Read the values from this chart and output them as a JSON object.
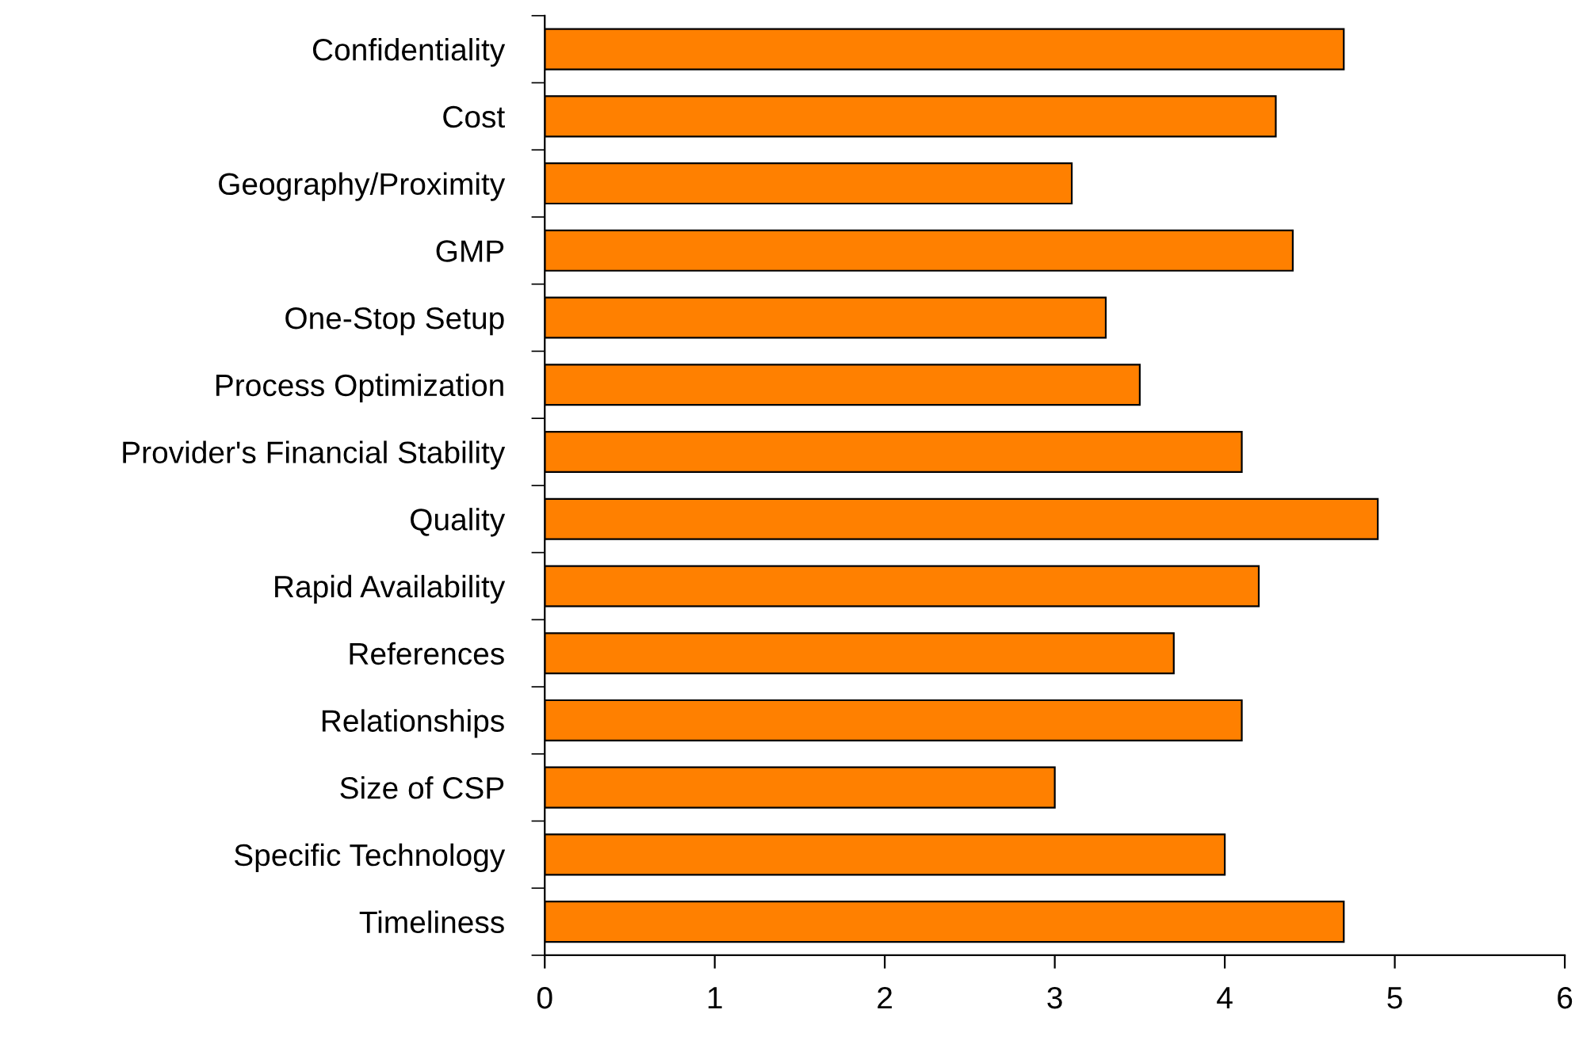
{
  "chart_data": {
    "type": "bar",
    "orientation": "horizontal",
    "categories": [
      "Confidentiality",
      "Cost",
      "Geography/Proximity",
      "GMP",
      "One-Stop Setup",
      "Process Optimization",
      "Provider's Financial Stability",
      "Quality",
      "Rapid Availability",
      "References",
      "Relationships",
      "Size of CSP",
      "Specific Technology",
      "Timeliness"
    ],
    "values": [
      4.7,
      4.3,
      3.1,
      4.4,
      3.3,
      3.5,
      4.1,
      4.9,
      4.2,
      3.7,
      4.1,
      3.0,
      4.0,
      4.7
    ],
    "color": "#ff8000",
    "xlim": [
      0,
      6
    ],
    "xticks": [
      0,
      1,
      2,
      3,
      4,
      5,
      6
    ],
    "grid": false,
    "legend": false
  }
}
